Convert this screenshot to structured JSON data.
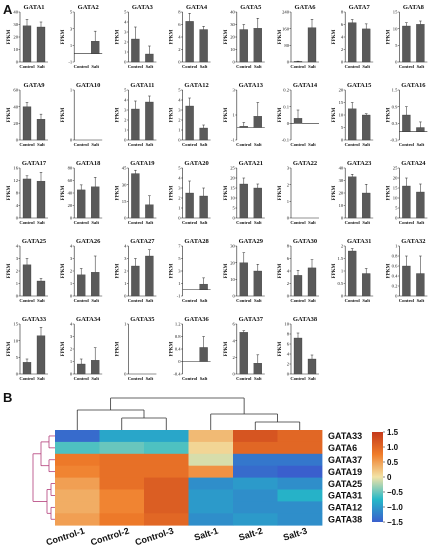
{
  "panels": {
    "a": "A",
    "b": "B"
  },
  "ylabel": "FPKM",
  "categories": [
    "Control",
    "Salt"
  ],
  "chart_data": [
    {
      "type": "bar",
      "title": "GATA1",
      "categories": [
        "Control",
        "Salt"
      ],
      "values": [
        29,
        28
      ],
      "errors": [
        5,
        4
      ],
      "ylim": [
        0,
        40
      ],
      "yticks": [
        "0",
        "10",
        "20",
        "30",
        "40"
      ]
    },
    {
      "type": "bar",
      "title": "GATA2",
      "categories": [
        "Control",
        "Salt"
      ],
      "values": [
        0,
        1.5
      ],
      "errors": [
        0,
        1.2
      ],
      "ylim": [
        -1,
        5
      ],
      "yticks": [
        "-1",
        "1",
        "3",
        "5"
      ]
    },
    {
      "type": "bar",
      "title": "GATA3",
      "categories": [
        "Control",
        "Salt"
      ],
      "values": [
        2.3,
        0.8
      ],
      "errors": [
        1.2,
        0.8
      ],
      "ylim": [
        0,
        5
      ],
      "yticks": [
        "0",
        "1",
        "2",
        "3",
        "4",
        "5"
      ]
    },
    {
      "type": "bar",
      "title": "GATA4",
      "categories": [
        "Control",
        "Salt"
      ],
      "values": [
        6.5,
        5.2
      ],
      "errors": [
        1.3,
        0.5
      ],
      "ylim": [
        0,
        8
      ],
      "yticks": [
        "0",
        "2",
        "4",
        "6",
        "8"
      ]
    },
    {
      "type": "bar",
      "title": "GATA5",
      "categories": [
        "Control",
        "Salt"
      ],
      "values": [
        26,
        27
      ],
      "errors": [
        4,
        8
      ],
      "ylim": [
        0,
        40
      ],
      "yticks": [
        "0",
        "10",
        "20",
        "30",
        "40"
      ]
    },
    {
      "type": "bar",
      "title": "GATA6",
      "categories": [
        "Control",
        "Salt"
      ],
      "values": [
        3,
        165
      ],
      "errors": [
        1,
        40
      ],
      "ylim": [
        0,
        240
      ],
      "yticks": [
        "0",
        "80",
        "160",
        "240"
      ]
    },
    {
      "type": "bar",
      "title": "GATA7",
      "categories": [
        "Control",
        "Salt"
      ],
      "values": [
        6.3,
        5.3
      ],
      "errors": [
        0.5,
        0.8
      ],
      "ylim": [
        0,
        8
      ],
      "yticks": [
        "0",
        "2",
        "4",
        "6",
        "8"
      ]
    },
    {
      "type": "bar",
      "title": "GATA8",
      "categories": [
        "Control",
        "Salt"
      ],
      "values": [
        10.8,
        11.3
      ],
      "errors": [
        1,
        1
      ],
      "ylim": [
        0,
        15
      ],
      "yticks": [
        "0",
        "5",
        "10",
        "15"
      ]
    },
    {
      "type": "bar",
      "title": "GATA9",
      "categories": [
        "Control",
        "Salt"
      ],
      "values": [
        40,
        25
      ],
      "errors": [
        5,
        6
      ],
      "ylim": [
        0,
        60
      ],
      "yticks": [
        "0",
        "20",
        "40",
        "60"
      ]
    },
    {
      "type": "bar",
      "title": "GATA10",
      "categories": [
        "Control",
        "Salt"
      ],
      "values": [
        0,
        0
      ],
      "errors": [
        0,
        0
      ],
      "ylim": [
        0,
        1
      ],
      "yticks": [
        "0",
        "1"
      ]
    },
    {
      "type": "bar",
      "title": "GATA11",
      "categories": [
        "Control",
        "Salt"
      ],
      "values": [
        3.1,
        3.8
      ],
      "errors": [
        0.8,
        0.6
      ],
      "ylim": [
        0,
        5
      ],
      "yticks": [
        "0",
        "1",
        "2",
        "3",
        "4",
        "5"
      ]
    },
    {
      "type": "bar",
      "title": "GATA12",
      "categories": [
        "Control",
        "Salt"
      ],
      "values": [
        3.4,
        1.2
      ],
      "errors": [
        0.8,
        0.3
      ],
      "ylim": [
        0,
        5
      ],
      "yticks": [
        "0",
        "1",
        "2",
        "3",
        "4",
        "5"
      ]
    },
    {
      "type": "bar",
      "title": "GATA13",
      "categories": [
        "Control",
        "Salt"
      ],
      "values": [
        0.1,
        0.9
      ],
      "errors": [
        0.3,
        1.1
      ],
      "ylim": [
        -1,
        3
      ],
      "yticks": [
        "-1",
        "1",
        "3"
      ]
    },
    {
      "type": "bar",
      "title": "GATA14",
      "categories": [
        "Control",
        "Salt"
      ],
      "values": [
        0.03,
        0
      ],
      "errors": [
        0.05,
        0
      ],
      "ylim": [
        -0.1,
        0.2
      ],
      "yticks": [
        "-0.1",
        "0",
        "0.1",
        "0.2"
      ]
    },
    {
      "type": "bar",
      "title": "GATA15",
      "categories": [
        "Control",
        "Salt"
      ],
      "values": [
        12.5,
        10
      ],
      "errors": [
        2.5,
        0.5
      ],
      "ylim": [
        0,
        20
      ],
      "yticks": [
        "0",
        "5",
        "10",
        "15",
        "20"
      ]
    },
    {
      "type": "bar",
      "title": "GATA16",
      "categories": [
        "Control",
        "Salt"
      ],
      "values": [
        0.6,
        0.15
      ],
      "errors": [
        0.3,
        0.2
      ],
      "ylim": [
        -0.3,
        1.5
      ],
      "yticks": [
        "-0.3",
        "0.3",
        "0.9",
        "1.5"
      ]
    },
    {
      "type": "bar",
      "title": "GATA17",
      "categories": [
        "Control",
        "Salt"
      ],
      "values": [
        12.5,
        11.8
      ],
      "errors": [
        1,
        2.8
      ],
      "ylim": [
        0,
        16
      ],
      "yticks": [
        "0",
        "4",
        "8",
        "12",
        "16"
      ]
    },
    {
      "type": "bar",
      "title": "GATA18",
      "categories": [
        "Control",
        "Salt"
      ],
      "values": [
        45,
        50
      ],
      "errors": [
        8,
        15
      ],
      "ylim": [
        0,
        80
      ],
      "yticks": [
        "0",
        "20",
        "40",
        "60",
        "80"
      ]
    },
    {
      "type": "bar",
      "title": "GATA19",
      "categories": [
        "Control",
        "Salt"
      ],
      "values": [
        40,
        12
      ],
      "errors": [
        3,
        8
      ],
      "ylim": [
        0,
        45
      ],
      "yticks": [
        "0",
        "15",
        "30",
        "45"
      ]
    },
    {
      "type": "bar",
      "title": "GATA20",
      "categories": [
        "Control",
        "Salt"
      ],
      "values": [
        2.5,
        2.2
      ],
      "errors": [
        1.2,
        0.8
      ],
      "ylim": [
        0,
        5
      ],
      "yticks": [
        "0",
        "1",
        "2",
        "3",
        "4",
        "5"
      ]
    },
    {
      "type": "bar",
      "title": "GATA21",
      "categories": [
        "Control",
        "Salt"
      ],
      "values": [
        17,
        15
      ],
      "errors": [
        3,
        2
      ],
      "ylim": [
        0,
        25
      ],
      "yticks": [
        "0",
        "5",
        "10",
        "15",
        "20",
        "25"
      ]
    },
    {
      "type": "bar",
      "title": "GATA22",
      "categories": [
        "Control",
        "Salt"
      ],
      "values": [
        0,
        0
      ],
      "errors": [
        0,
        0
      ],
      "ylim": [
        0,
        3
      ],
      "yticks": [
        "0",
        "1",
        "2",
        "3"
      ]
    },
    {
      "type": "bar",
      "title": "GATA23",
      "categories": [
        "Control",
        "Salt"
      ],
      "values": [
        33,
        20
      ],
      "errors": [
        2,
        7
      ],
      "ylim": [
        0,
        40
      ],
      "yticks": [
        "0",
        "10",
        "20",
        "30",
        "40"
      ]
    },
    {
      "type": "bar",
      "title": "GATA24",
      "categories": [
        "Control",
        "Salt"
      ],
      "values": [
        16,
        13
      ],
      "errors": [
        4,
        4
      ],
      "ylim": [
        0,
        25
      ],
      "yticks": [
        "0",
        "5",
        "10",
        "15",
        "20",
        "25"
      ]
    },
    {
      "type": "bar",
      "title": "GATA25",
      "categories": [
        "Control",
        "Salt"
      ],
      "values": [
        2.5,
        1.2
      ],
      "errors": [
        0.5,
        0.2
      ],
      "ylim": [
        0,
        4
      ],
      "yticks": [
        "0",
        "1",
        "2",
        "3",
        "4"
      ]
    },
    {
      "type": "bar",
      "title": "GATA26",
      "categories": [
        "Control",
        "Salt"
      ],
      "values": [
        1.7,
        1.9
      ],
      "errors": [
        0.5,
        1.3
      ],
      "ylim": [
        0,
        4
      ],
      "yticks": [
        "0",
        "1",
        "2",
        "3",
        "4"
      ]
    },
    {
      "type": "bar",
      "title": "GATA27",
      "categories": [
        "Control",
        "Salt"
      ],
      "values": [
        2.4,
        3.2
      ],
      "errors": [
        0.6,
        0.5
      ],
      "ylim": [
        0,
        4
      ],
      "yticks": [
        "0",
        "1",
        "2",
        "3",
        "4"
      ]
    },
    {
      "type": "bar",
      "title": "GATA28",
      "categories": [
        "Control",
        "Salt"
      ],
      "values": [
        0,
        0.9
      ],
      "errors": [
        0,
        1
      ],
      "ylim": [
        -1,
        7
      ],
      "yticks": [
        "-1",
        "1",
        "3",
        "5",
        "7"
      ]
    },
    {
      "type": "bar",
      "title": "GATA29",
      "categories": [
        "Control",
        "Salt"
      ],
      "values": [
        20,
        15
      ],
      "errors": [
        6,
        4
      ],
      "ylim": [
        0,
        30
      ],
      "yticks": [
        "0",
        "10",
        "20",
        "30"
      ]
    },
    {
      "type": "bar",
      "title": "GATA30",
      "categories": [
        "Control",
        "Salt"
      ],
      "values": [
        3.3,
        4.5
      ],
      "errors": [
        0.8,
        1.3
      ],
      "ylim": [
        0,
        8
      ],
      "yticks": [
        "0",
        "2",
        "4",
        "6",
        "8"
      ]
    },
    {
      "type": "bar",
      "title": "GATA31",
      "categories": [
        "Control",
        "Salt"
      ],
      "values": [
        1.8,
        0.9
      ],
      "errors": [
        0.1,
        0.2
      ],
      "ylim": [
        0,
        2
      ],
      "yticks": [
        "0",
        "0.5",
        "1",
        "1.5",
        "2"
      ]
    },
    {
      "type": "bar",
      "title": "GATA32",
      "categories": [
        "Control",
        "Salt"
      ],
      "values": [
        0.6,
        0.45
      ],
      "errors": [
        0.2,
        0.35
      ],
      "ylim": [
        0,
        1
      ],
      "yticks": [
        "0",
        "0.2",
        "0.4",
        "0.6",
        "0.8",
        "1"
      ]
    },
    {
      "type": "bar",
      "title": "GATA33",
      "categories": [
        "Control",
        "Salt"
      ],
      "values": [
        3.5,
        11.5
      ],
      "errors": [
        1,
        2.5
      ],
      "ylim": [
        0,
        15
      ],
      "yticks": [
        "0",
        "5",
        "10",
        "15"
      ]
    },
    {
      "type": "bar",
      "title": "GATA34",
      "categories": [
        "Control",
        "Salt"
      ],
      "values": [
        0.8,
        1.1
      ],
      "errors": [
        0.4,
        1
      ],
      "ylim": [
        0,
        4
      ],
      "yticks": [
        "0",
        "1",
        "2",
        "3",
        "4"
      ]
    },
    {
      "type": "bar",
      "title": "GATA35",
      "categories": [
        "Control",
        "Salt"
      ],
      "values": [
        0,
        0
      ],
      "errors": [
        0,
        0
      ],
      "ylim": [
        0,
        1
      ],
      "yticks": [
        "0",
        "1"
      ]
    },
    {
      "type": "bar",
      "title": "GATA36",
      "categories": [
        "Control",
        "Salt"
      ],
      "values": [
        0,
        0.45
      ],
      "errors": [
        0,
        0.35
      ],
      "ylim": [
        -0.4,
        1.2
      ],
      "yticks": [
        "-0.4",
        "0",
        "0.4",
        "0.8",
        "1.2"
      ]
    },
    {
      "type": "bar",
      "title": "GATA37",
      "categories": [
        "Control",
        "Salt"
      ],
      "values": [
        5,
        1.3
      ],
      "errors": [
        0.2,
        1
      ],
      "ylim": [
        0,
        6
      ],
      "yticks": [
        "0",
        "2",
        "4",
        "6"
      ]
    },
    {
      "type": "bar",
      "title": "GATA38",
      "categories": [
        "Control",
        "Salt"
      ],
      "values": [
        7.2,
        3
      ],
      "errors": [
        1,
        0.8
      ],
      "ylim": [
        0,
        10
      ],
      "yticks": [
        "0",
        "2",
        "4",
        "6",
        "8",
        "10"
      ]
    },
    {
      "type": "heatmap",
      "columns": [
        "Control-1",
        "Control-2",
        "Control-3",
        "Salt-1",
        "Salt-2",
        "Salt-3"
      ],
      "rows": [
        "GATA33",
        "GATA6",
        "GATA37",
        "GATA19",
        "GATA25",
        "GATA31",
        "GATA12",
        "GATA38"
      ],
      "values": [
        [
          -1.4,
          -0.9,
          -0.9,
          0.3,
          1.2,
          1.0
        ],
        [
          -0.6,
          -0.5,
          -0.6,
          0.1,
          1.0,
          1.0
        ],
        [
          0.8,
          0.9,
          0.9,
          -0.1,
          -1.3,
          -1.3
        ],
        [
          0.7,
          0.9,
          0.9,
          0.6,
          -1.4,
          -1.5
        ],
        [
          0.5,
          0.9,
          1.1,
          -1.1,
          -1.0,
          -1.1
        ],
        [
          0.4,
          0.7,
          1.1,
          -1.0,
          -1.1,
          -0.8
        ],
        [
          0.4,
          0.7,
          1.1,
          -1.0,
          -1.1,
          -1.1
        ],
        [
          0.5,
          0.8,
          1.0,
          -1.1,
          -1.0,
          -1.1
        ]
      ],
      "colorbar": {
        "range": [
          -1.5,
          1.5
        ],
        "ticks": [
          "1.5",
          "1.0",
          "0.5",
          "0",
          "−0.5",
          "−1.0",
          "−1.5"
        ],
        "colors": [
          "#3a5fcd",
          "#25b8c8",
          "#f2e3a6",
          "#f07d2a",
          "#c43a1b"
        ]
      }
    }
  ]
}
